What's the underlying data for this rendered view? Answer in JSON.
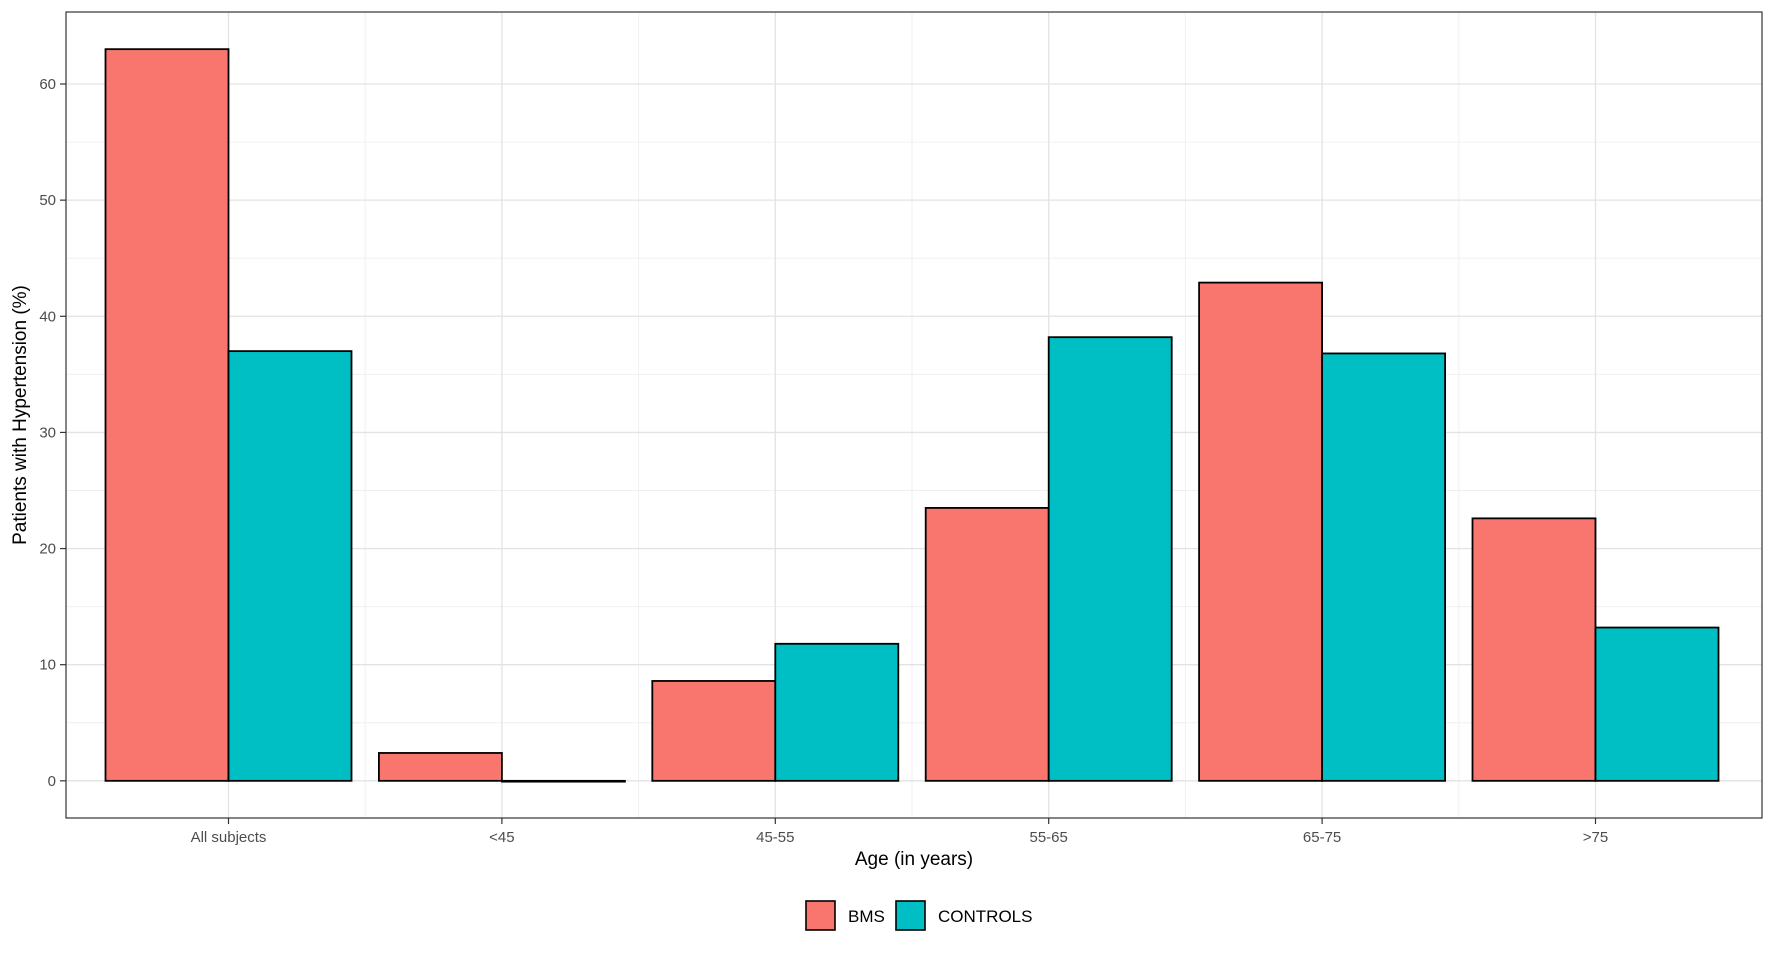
{
  "chart_data": {
    "type": "bar",
    "title": "",
    "xlabel": "Age (in years)",
    "ylabel": "Patients with Hypertension (%)",
    "categories": [
      "All subjects",
      "<45",
      "45-55",
      "55-65",
      "65-75",
      ">75"
    ],
    "series": [
      {
        "name": "BMS",
        "values": [
          63.0,
          2.4,
          8.6,
          23.5,
          42.9,
          22.6
        ],
        "color": "#F8766D"
      },
      {
        "name": "CONTROLS",
        "values": [
          37.0,
          0.0,
          11.8,
          38.2,
          36.8,
          13.2
        ],
        "color": "#00BFC4"
      }
    ],
    "ylim": [
      -3.2,
      66.2
    ],
    "yticks": [
      0,
      10,
      20,
      30,
      40,
      50,
      60
    ],
    "grid": true,
    "legend": "bottom"
  }
}
